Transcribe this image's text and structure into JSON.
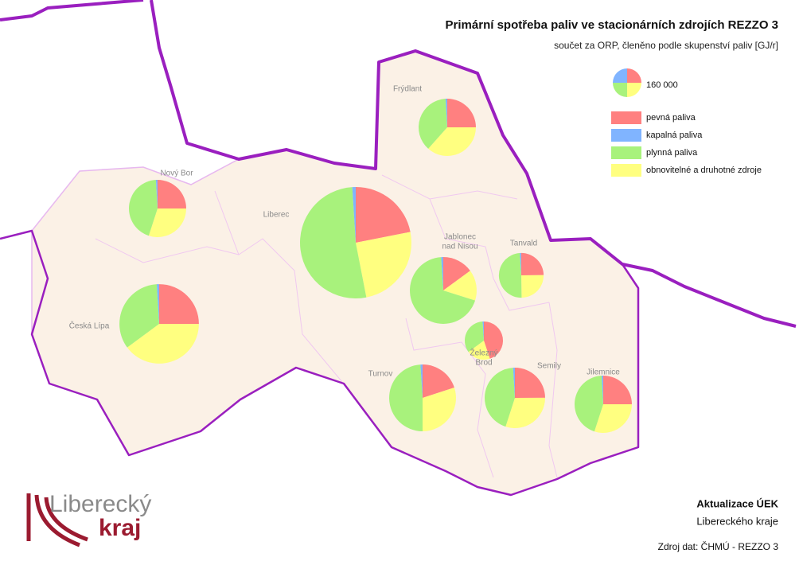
{
  "header": {
    "title": "Primární spotřeba paliv ve stacionárních zdrojích REZZO 3",
    "subtitle": "součet za ORP, členěno podle skupenství paliv [GJ/r]"
  },
  "legend": {
    "scale": {
      "value": 160000,
      "label": "160 000"
    },
    "items": [
      {
        "name": "pevná paliva",
        "color": "#ff8080"
      },
      {
        "name": "kapalná paliva",
        "color": "#80b4ff"
      },
      {
        "name": "plynná paliva",
        "color": "#a8f27c"
      },
      {
        "name": "obnovitelné a druhotné zdroje",
        "color": "#ffff80"
      }
    ]
  },
  "orp": [
    {
      "name": [
        "Frýdlant"
      ],
      "values": [
        160000,
        6000,
        240000,
        234000
      ]
    },
    {
      "name": [
        "Nový Bor"
      ],
      "values": [
        160000,
        6000,
        282000,
        192000
      ]
    },
    {
      "name": [
        "Liberec"
      ],
      "values": [
        530000,
        24000,
        1260000,
        606000
      ]
    },
    {
      "name": [
        "Česká Lípa"
      ],
      "values": [
        308000,
        12000,
        420000,
        490000
      ]
    },
    {
      "name": [
        "Jablonec",
        "nad Nisou"
      ],
      "values": [
        130000,
        9000,
        601000,
        130000
      ]
    },
    {
      "name": [
        "Tanvald"
      ],
      "values": [
        97000,
        4000,
        192000,
        97000
      ]
    },
    {
      "name": [
        "Železný",
        "Brod"
      ],
      "values": [
        128000,
        3000,
        97000,
        57000
      ]
    },
    {
      "name": [
        "Turnov"
      ],
      "values": [
        174000,
        9000,
        426000,
        261000
      ]
    },
    {
      "name": [
        "Semily"
      ],
      "values": [
        178000,
        7000,
        314000,
        214000
      ]
    },
    {
      "name": [
        "Jilemnice"
      ],
      "values": [
        160000,
        6000,
        282000,
        192000
      ]
    }
  ],
  "footer": {
    "line1": "Aktualizace ÚEK",
    "line2": "Libereckého kraje",
    "source": "Zdroj dat: ČHMÚ - REZZO 3",
    "logo": [
      "Liberecký",
      "kraj"
    ]
  }
}
